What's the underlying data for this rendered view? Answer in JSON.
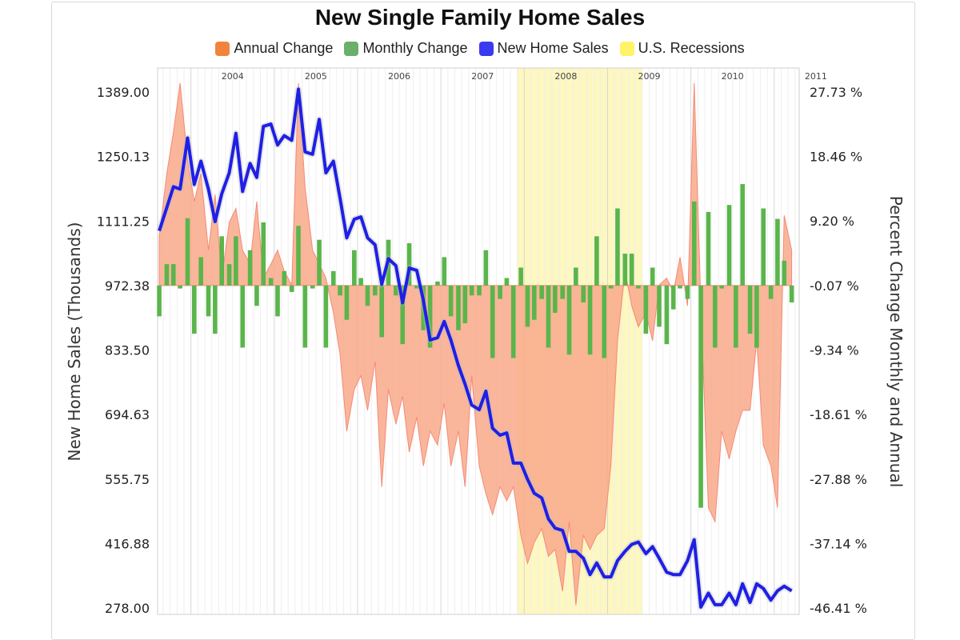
{
  "chart_data": {
    "type": "line",
    "title": "New Single Family Home Sales",
    "ylabel_left": "New Home Sales (Thousands)",
    "ylabel_right": "Percent Change Monthly and Annual",
    "left_ticks": [
      "1389.00",
      "1250.13",
      "1111.25",
      "972.38",
      "833.50",
      "694.63",
      "555.75",
      "416.88",
      "278.00"
    ],
    "right_ticks": [
      "27.73 %",
      "18.46 %",
      "9.20 %",
      "-0.07 %",
      "-9.34 %",
      "-18.61 %",
      "-27.88 %",
      "-37.14 %",
      "-46.41 %"
    ],
    "ylim_left": [
      278.0,
      1389.0
    ],
    "ylim_right": [
      -46.41,
      27.73
    ],
    "years": [
      "2004",
      "2005",
      "2006",
      "2007",
      "2008",
      "2009",
      "2010",
      "2011"
    ],
    "x_range": [
      2003.6,
      2011.3
    ],
    "recession": [
      2007.92,
      2009.42
    ],
    "colors": {
      "annual": "#f9a98a",
      "monthly": "#5ab54b",
      "sales": "#1f1fe6",
      "recession": "#fdf7c0"
    },
    "legend": [
      {
        "label": "Annual Change",
        "color": "#f0843c"
      },
      {
        "label": "Monthly Change",
        "color": "#6ab06a"
      },
      {
        "label": "New Home Sales",
        "color": "#3a3af0"
      },
      {
        "label": "U.S. Recessions",
        "color": "#fff36a"
      }
    ],
    "series": [
      {
        "name": "New Home Sales",
        "x": [
          2003.62,
          2003.71,
          2003.79,
          2003.87,
          2003.96,
          2004.04,
          2004.12,
          2004.21,
          2004.29,
          2004.37,
          2004.46,
          2004.54,
          2004.62,
          2004.71,
          2004.79,
          2004.87,
          2004.96,
          2005.04,
          2005.12,
          2005.21,
          2005.29,
          2005.37,
          2005.46,
          2005.54,
          2005.62,
          2005.71,
          2005.79,
          2005.87,
          2005.96,
          2006.04,
          2006.12,
          2006.21,
          2006.29,
          2006.37,
          2006.46,
          2006.54,
          2006.62,
          2006.71,
          2006.79,
          2006.87,
          2006.96,
          2007.04,
          2007.12,
          2007.21,
          2007.29,
          2007.37,
          2007.46,
          2007.54,
          2007.62,
          2007.71,
          2007.79,
          2007.87,
          2007.96,
          2008.04,
          2008.12,
          2008.21,
          2008.29,
          2008.37,
          2008.46,
          2008.54,
          2008.62,
          2008.71,
          2008.79,
          2008.87,
          2008.96,
          2009.04,
          2009.12,
          2009.21,
          2009.29,
          2009.37,
          2009.46,
          2009.54,
          2009.62,
          2009.71,
          2009.79,
          2009.87,
          2009.96,
          2010.04,
          2010.12,
          2010.21,
          2010.29,
          2010.37,
          2010.46,
          2010.54,
          2010.62,
          2010.71,
          2010.79,
          2010.87,
          2010.96,
          2011.04,
          2011.12,
          2011.21
        ],
        "values": [
          1090,
          1140,
          1185,
          1180,
          1290,
          1190,
          1240,
          1180,
          1110,
          1170,
          1215,
          1300,
          1175,
          1235,
          1205,
          1315,
          1320,
          1275,
          1295,
          1285,
          1395,
          1260,
          1255,
          1330,
          1215,
          1240,
          1160,
          1075,
          1115,
          1120,
          1075,
          1060,
          975,
          1030,
          1015,
          935,
          1010,
          1005,
          940,
          855,
          860,
          895,
          855,
          800,
          760,
          715,
          705,
          745,
          665,
          650,
          655,
          590,
          590,
          555,
          525,
          515,
          470,
          450,
          445,
          400,
          400,
          385,
          350,
          375,
          345,
          345,
          380,
          400,
          415,
          420,
          395,
          410,
          385,
          355,
          350,
          350,
          380,
          425,
          280,
          310,
          285,
          285,
          310,
          285,
          330,
          290,
          330,
          320,
          295,
          315,
          325,
          315
        ]
      },
      {
        "name": "Monthly Change",
        "x": [
          2003.62,
          2003.71,
          2003.79,
          2003.87,
          2003.96,
          2004.04,
          2004.12,
          2004.21,
          2004.29,
          2004.37,
          2004.46,
          2004.54,
          2004.62,
          2004.71,
          2004.79,
          2004.87,
          2004.96,
          2005.04,
          2005.12,
          2005.21,
          2005.29,
          2005.37,
          2005.46,
          2005.54,
          2005.62,
          2005.71,
          2005.79,
          2005.87,
          2005.96,
          2006.04,
          2006.12,
          2006.21,
          2006.29,
          2006.37,
          2006.46,
          2006.54,
          2006.62,
          2006.71,
          2006.79,
          2006.87,
          2006.96,
          2007.04,
          2007.12,
          2007.21,
          2007.29,
          2007.37,
          2007.46,
          2007.54,
          2007.62,
          2007.71,
          2007.79,
          2007.87,
          2007.96,
          2008.04,
          2008.12,
          2008.21,
          2008.29,
          2008.37,
          2008.46,
          2008.54,
          2008.62,
          2008.71,
          2008.79,
          2008.87,
          2008.96,
          2009.04,
          2009.12,
          2009.21,
          2009.29,
          2009.37,
          2009.46,
          2009.54,
          2009.62,
          2009.71,
          2009.79,
          2009.87,
          2009.96,
          2010.04,
          2010.12,
          2010.21,
          2010.29,
          2010.37,
          2010.46,
          2010.54,
          2010.62,
          2010.71,
          2010.79,
          2010.87,
          2010.96,
          2011.04,
          2011.12,
          2011.21
        ],
        "values": [
          -4.5,
          3.0,
          3.0,
          -0.5,
          9.6,
          -7.0,
          4.0,
          -4.5,
          -7.0,
          7.0,
          3.0,
          7.0,
          -9.0,
          5.0,
          -3.0,
          9.0,
          1.0,
          -4.5,
          2.0,
          -1.0,
          8.5,
          -9.0,
          -0.5,
          6.5,
          -9.0,
          2.0,
          -1.5,
          -5.0,
          5.0,
          1.0,
          -3.0,
          -1.5,
          -7.5,
          6.5,
          -1.5,
          -8.5,
          6.0,
          -0.5,
          -6.5,
          -9.0,
          0.5,
          4.0,
          -4.5,
          -6.5,
          -5.5,
          -1.5,
          -1.5,
          5.0,
          -10.5,
          -2.0,
          1.0,
          -10.5,
          2.5,
          -6.0,
          -5.0,
          -2.0,
          -9.0,
          -4.0,
          -2.0,
          -10.0,
          2.5,
          -2.5,
          -10.0,
          7.0,
          -10.5,
          -0.5,
          11.0,
          4.5,
          4.5,
          -0.5,
          -7.0,
          2.5,
          -6.0,
          -8.5,
          -3.5,
          -0.5,
          -2.0,
          12.0,
          -32.0,
          10.5,
          -9.0,
          -0.5,
          11.5,
          -9.0,
          14.5,
          -7.0,
          -9.0,
          11.0,
          -2.0,
          9.5,
          3.5,
          -2.5
        ]
      },
      {
        "name": "Annual Change",
        "x": [
          2003.62,
          2003.71,
          2003.79,
          2003.87,
          2003.96,
          2004.04,
          2004.12,
          2004.21,
          2004.29,
          2004.37,
          2004.46,
          2004.54,
          2004.62,
          2004.71,
          2004.79,
          2004.87,
          2004.96,
          2005.04,
          2005.12,
          2005.21,
          2005.29,
          2005.37,
          2005.46,
          2005.54,
          2005.62,
          2005.71,
          2005.79,
          2005.87,
          2005.96,
          2006.04,
          2006.12,
          2006.21,
          2006.29,
          2006.37,
          2006.46,
          2006.54,
          2006.62,
          2006.71,
          2006.79,
          2006.87,
          2006.96,
          2007.04,
          2007.12,
          2007.21,
          2007.29,
          2007.37,
          2007.46,
          2007.54,
          2007.62,
          2007.71,
          2007.79,
          2007.87,
          2007.96,
          2008.04,
          2008.12,
          2008.21,
          2008.29,
          2008.37,
          2008.46,
          2008.54,
          2008.62,
          2008.71,
          2008.79,
          2008.87,
          2008.96,
          2009.04,
          2009.12,
          2009.21,
          2009.29,
          2009.37,
          2009.46,
          2009.54,
          2009.62,
          2009.71,
          2009.79,
          2009.87,
          2009.96,
          2010.04,
          2010.12,
          2010.21,
          2010.29,
          2010.37,
          2010.46,
          2010.54,
          2010.62,
          2010.71,
          2010.79,
          2010.87,
          2010.96,
          2011.04,
          2011.12,
          2011.21
        ],
        "values": [
          7,
          16,
          22,
          29,
          18,
          12,
          16,
          5,
          13,
          1,
          9,
          11,
          5,
          3,
          12,
          1,
          3,
          5,
          2,
          0,
          29,
          14,
          5,
          3,
          1,
          -4,
          -10,
          -21,
          -15,
          -13,
          -18,
          -11,
          -29,
          -15,
          -20,
          -16,
          -24,
          -19,
          -26,
          -21,
          -23,
          -17,
          -26,
          -21,
          -29,
          -13,
          -26,
          -30,
          -33,
          -29,
          -31,
          -29,
          -36,
          -40,
          -37,
          -35,
          -39,
          -38,
          -44,
          -34,
          -46,
          -36,
          -38,
          -36,
          -35,
          -26,
          -8,
          2,
          -3,
          -6,
          -4,
          -8,
          0,
          1,
          -1,
          4,
          -3,
          29,
          -3,
          -32,
          -34,
          -21,
          -25,
          -21,
          -18,
          -18,
          -8,
          -23,
          -26,
          -32,
          10,
          5
        ]
      }
    ]
  }
}
